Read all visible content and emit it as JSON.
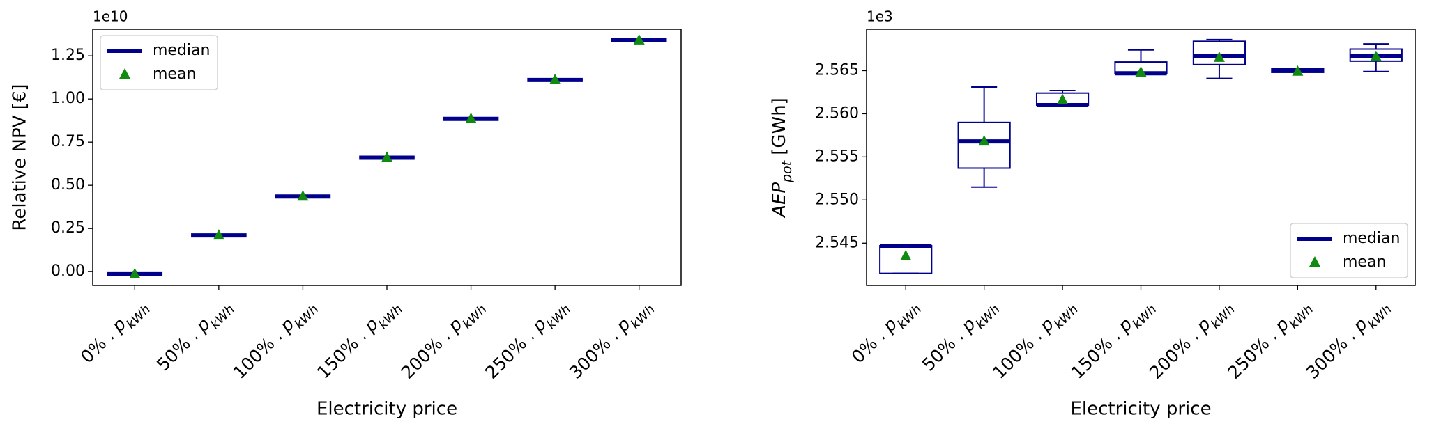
{
  "chart_data": [
    {
      "type": "box",
      "categories": [
        "0% . ",
        "50% . ",
        "100% . ",
        "150% . ",
        "200% . ",
        "250% . ",
        "300% . "
      ],
      "category_symbol": "p",
      "category_subscript": "kWh",
      "xlabel": "Electricity price",
      "ylabel": "Relative NPV [€]",
      "offset_label": "1e10",
      "ylim": [
        -0.08,
        1.404
      ],
      "yticks": [
        {
          "value": 0,
          "label": "0.00"
        },
        0.25,
        {
          "value": 0.5,
          "label": "0.50"
        },
        0.75,
        {
          "value": 1,
          "label": "1.00"
        },
        1.25
      ],
      "median": [
        -0.015,
        0.21,
        0.435,
        0.66,
        0.885,
        1.11,
        1.34
      ],
      "mean": [
        -0.015,
        0.21,
        0.435,
        0.66,
        0.885,
        1.11,
        1.34
      ],
      "color": "#00008b",
      "mean_color": "#108a10",
      "legend": {
        "loc": "upper left",
        "median": "median",
        "mean": "mean"
      }
    },
    {
      "type": "box",
      "categories": [
        "0% . ",
        "50% . ",
        "100% . ",
        "150% . ",
        "200% . ",
        "250% . ",
        "300% . "
      ],
      "category_symbol": "p",
      "category_subscript": "kWh",
      "xlabel": "Electricity price",
      "ylabel": "AEP",
      "ylabel_subscript": "pot",
      "ylabel_unit": "[GWh]",
      "offset_label": "1e3",
      "ylim": [
        2.5401,
        2.5698
      ],
      "yticks": [
        2.545,
        {
          "value": 2.55,
          "label": "2.550"
        },
        2.555,
        {
          "value": 2.56,
          "label": "2.560"
        },
        2.565
      ],
      "whislo": [
        2.5415,
        2.5515,
        2.561,
        2.5647,
        2.5641,
        2.5649,
        2.5649
      ],
      "q1": [
        2.5415,
        2.5537,
        2.561,
        2.5647,
        2.5657,
        2.5648,
        2.5661
      ],
      "median": [
        2.5447,
        2.5568,
        2.561,
        2.5647,
        2.5667,
        2.565,
        2.5667
      ],
      "q3": [
        2.5447,
        2.559,
        2.5624,
        2.566,
        2.5684,
        2.5652,
        2.5675
      ],
      "whishi": [
        2.5447,
        2.5631,
        2.5627,
        2.5674,
        2.5686,
        2.5652,
        2.5681
      ],
      "mean": [
        2.5435,
        2.5568,
        2.5616,
        2.5648,
        2.5665,
        2.5649,
        2.5666
      ],
      "color": "#00008b",
      "mean_color": "#108a10",
      "legend": {
        "loc": "lower right",
        "median": "median",
        "mean": "mean"
      }
    }
  ]
}
